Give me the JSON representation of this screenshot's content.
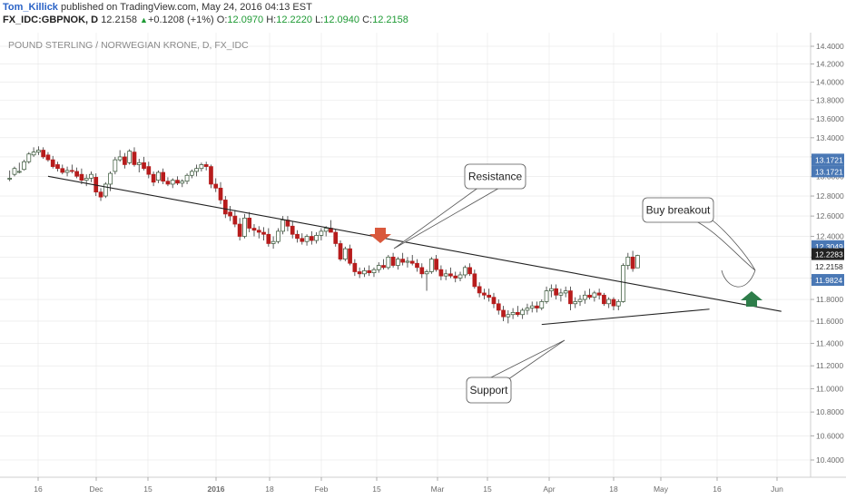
{
  "header": {
    "author": "Tom_Killick",
    "published_text": "published on TradingView.com, May 24, 2016 04:13 EST",
    "symbol": "FX_IDC:GBPNOK, D",
    "last": "12.2158",
    "change": "+0.1208 (+1%)",
    "o_label": "O:",
    "o_value": "12.0970",
    "h_label": "H:",
    "h_value": "12.2220",
    "l_label": "L:",
    "l_value": "12.0940",
    "c_label": "C:",
    "c_value": "12.2158"
  },
  "colors": {
    "up_fill": "#ffffff",
    "up_border": "#2f4f2f",
    "down_fill": "#b71c1c",
    "wick": "#333333",
    "badge_blue": "#4a78b5",
    "badge_dark": "#222222",
    "arrow_red": "#d9583c",
    "arrow_green": "#2e7d4a",
    "grid": "#e6e6e6",
    "trendline": "#222222"
  },
  "chart_data": {
    "type": "candlestick",
    "title": "POUND STERLING / NORWEGIAN KRONE, D, FX_IDC",
    "y_scale": "log",
    "ylim": [
      10.3,
      14.6
    ],
    "y_ticks": [
      "14.4000",
      "14.2000",
      "14.0000",
      "13.8000",
      "13.6000",
      "13.4000",
      "13.2000",
      "13.0000",
      "12.8000",
      "12.6000",
      "12.4000",
      "12.2000",
      "12.0000",
      "11.8000",
      "11.6000",
      "11.4000",
      "11.2000",
      "11.0000",
      "10.8000",
      "10.6000",
      "10.4000"
    ],
    "x_ticks": [
      "16",
      "Dec",
      "15",
      "2016",
      "18",
      "Feb",
      "15",
      "Mar",
      "15",
      "Apr",
      "18",
      "May",
      "16",
      "Jun"
    ],
    "price_labels": [
      "13.1721",
      "13.1721",
      "12.3049",
      "11.9824",
      "12.2283",
      "12.2158"
    ],
    "annotations": [
      "Resistance",
      "Support",
      "Buy breakout"
    ],
    "trendlines": [
      {
        "name": "resistance",
        "start": [
          8,
          13.0
        ],
        "end": [
          161,
          11.69
        ]
      },
      {
        "name": "support",
        "start": [
          111,
          11.57
        ],
        "end": [
          146,
          11.71
        ]
      }
    ],
    "candles": [
      [
        12.98,
        13.06,
        12.95,
        12.98
      ],
      [
        13.02,
        13.1,
        13.0,
        13.08
      ],
      [
        13.05,
        13.14,
        13.03,
        13.05
      ],
      [
        13.07,
        13.17,
        13.06,
        13.15
      ],
      [
        13.15,
        13.25,
        13.13,
        13.23
      ],
      [
        13.22,
        13.3,
        13.2,
        13.25
      ],
      [
        13.25,
        13.31,
        13.22,
        13.27
      ],
      [
        13.27,
        13.3,
        13.18,
        13.2
      ],
      [
        13.22,
        13.25,
        13.15,
        13.17
      ],
      [
        13.17,
        13.21,
        13.08,
        13.1
      ],
      [
        13.12,
        13.15,
        13.05,
        13.08
      ],
      [
        13.08,
        13.12,
        13.02,
        13.04
      ],
      [
        13.04,
        13.1,
        13.0,
        13.06
      ],
      [
        13.06,
        13.12,
        13.03,
        13.05
      ],
      [
        13.05,
        13.09,
        12.98,
        13.0
      ],
      [
        13.02,
        13.08,
        12.92,
        12.96
      ],
      [
        12.96,
        13.02,
        12.9,
        12.98
      ],
      [
        12.98,
        13.05,
        12.94,
        13.02
      ],
      [
        12.99,
        13.03,
        12.8,
        12.84
      ],
      [
        12.84,
        12.88,
        12.75,
        12.79
      ],
      [
        12.8,
        12.94,
        12.78,
        12.92
      ],
      [
        12.92,
        13.05,
        12.85,
        13.03
      ],
      [
        13.05,
        13.2,
        13.02,
        13.17
      ],
      [
        13.17,
        13.27,
        13.15,
        13.2
      ],
      [
        13.2,
        13.24,
        13.08,
        13.12
      ],
      [
        13.14,
        13.28,
        13.12,
        13.26
      ],
      [
        13.25,
        13.3,
        13.1,
        13.12
      ],
      [
        13.12,
        13.18,
        13.04,
        13.14
      ],
      [
        13.14,
        13.2,
        13.06,
        13.08
      ],
      [
        13.1,
        13.15,
        12.98,
        13.02
      ],
      [
        13.02,
        13.05,
        12.9,
        12.94
      ],
      [
        12.96,
        13.06,
        12.93,
        13.04
      ],
      [
        13.04,
        13.08,
        12.92,
        12.95
      ],
      [
        12.95,
        12.99,
        12.9,
        12.92
      ],
      [
        12.92,
        12.98,
        12.88,
        12.96
      ],
      [
        12.96,
        13.0,
        12.91,
        12.93
      ],
      [
        12.93,
        12.97,
        12.89,
        12.95
      ],
      [
        12.95,
        13.03,
        12.92,
        13.01
      ],
      [
        13.01,
        13.07,
        12.98,
        13.05
      ],
      [
        13.05,
        13.12,
        13.0,
        13.08
      ],
      [
        13.08,
        13.14,
        13.05,
        13.12
      ],
      [
        13.12,
        13.15,
        13.06,
        13.1
      ],
      [
        13.1,
        13.12,
        12.88,
        12.92
      ],
      [
        12.92,
        12.98,
        12.84,
        12.88
      ],
      [
        12.88,
        12.94,
        12.72,
        12.76
      ],
      [
        12.76,
        12.8,
        12.58,
        12.62
      ],
      [
        12.64,
        12.7,
        12.55,
        12.6
      ],
      [
        12.6,
        12.66,
        12.49,
        12.52
      ],
      [
        12.52,
        12.58,
        12.36,
        12.4
      ],
      [
        12.4,
        12.62,
        12.38,
        12.58
      ],
      [
        12.58,
        12.64,
        12.44,
        12.48
      ],
      [
        12.48,
        12.52,
        12.4,
        12.46
      ],
      [
        12.46,
        12.5,
        12.38,
        12.44
      ],
      [
        12.44,
        12.49,
        12.36,
        12.42
      ],
      [
        12.42,
        12.48,
        12.3,
        12.33
      ],
      [
        12.33,
        12.4,
        12.28,
        12.35
      ],
      [
        12.35,
        12.48,
        12.33,
        12.45
      ],
      [
        12.45,
        12.6,
        12.42,
        12.56
      ],
      [
        12.56,
        12.6,
        12.45,
        12.5
      ],
      [
        12.5,
        12.55,
        12.38,
        12.42
      ],
      [
        12.42,
        12.46,
        12.34,
        12.38
      ],
      [
        12.38,
        12.43,
        12.32,
        12.35
      ],
      [
        12.35,
        12.42,
        12.31,
        12.4
      ],
      [
        12.4,
        12.45,
        12.32,
        12.36
      ],
      [
        12.36,
        12.44,
        12.33,
        12.41
      ],
      [
        12.41,
        12.48,
        12.36,
        12.45
      ],
      [
        12.45,
        12.5,
        12.4,
        12.48
      ],
      [
        12.48,
        12.56,
        12.44,
        12.44
      ],
      [
        12.44,
        12.47,
        12.3,
        12.33
      ],
      [
        12.33,
        12.36,
        12.16,
        12.18
      ],
      [
        12.18,
        12.3,
        12.16,
        12.28
      ],
      [
        12.28,
        12.32,
        12.12,
        12.14
      ],
      [
        12.14,
        12.18,
        12.02,
        12.06
      ],
      [
        12.06,
        12.1,
        12.0,
        12.04
      ],
      [
        12.04,
        12.1,
        12.01,
        12.07
      ],
      [
        12.07,
        12.12,
        12.02,
        12.05
      ],
      [
        12.05,
        12.1,
        12.01,
        12.08
      ],
      [
        12.08,
        12.15,
        12.05,
        12.12
      ],
      [
        12.12,
        12.18,
        12.08,
        12.1
      ],
      [
        12.1,
        12.22,
        12.08,
        12.2
      ],
      [
        12.2,
        12.24,
        12.1,
        12.12
      ],
      [
        12.12,
        12.2,
        12.08,
        12.18
      ],
      [
        12.18,
        12.24,
        12.12,
        12.15
      ],
      [
        12.15,
        12.2,
        12.1,
        12.16
      ],
      [
        12.16,
        12.22,
        12.12,
        12.14
      ],
      [
        12.14,
        12.18,
        12.06,
        12.1
      ],
      [
        12.1,
        12.14,
        12.0,
        12.04
      ],
      [
        12.04,
        12.08,
        11.88,
        12.06
      ],
      [
        12.06,
        12.2,
        12.04,
        12.18
      ],
      [
        12.18,
        12.22,
        12.06,
        12.08
      ],
      [
        12.08,
        12.12,
        11.98,
        12.02
      ],
      [
        12.02,
        12.08,
        11.98,
        12.04
      ],
      [
        12.04,
        12.1,
        12.0,
        12.02
      ],
      [
        12.02,
        12.06,
        11.96,
        12.0
      ],
      [
        12.0,
        12.06,
        11.97,
        12.03
      ],
      [
        12.03,
        12.12,
        12.0,
        12.1
      ],
      [
        12.1,
        12.14,
        12.02,
        12.04
      ],
      [
        12.04,
        12.08,
        11.9,
        11.92
      ],
      [
        11.92,
        11.96,
        11.82,
        11.86
      ],
      [
        11.86,
        11.9,
        11.8,
        11.84
      ],
      [
        11.84,
        11.9,
        11.78,
        11.82
      ],
      [
        11.82,
        11.86,
        11.72,
        11.76
      ],
      [
        11.76,
        11.8,
        11.66,
        11.7
      ],
      [
        11.7,
        11.74,
        11.6,
        11.64
      ],
      [
        11.64,
        11.7,
        11.58,
        11.66
      ],
      [
        11.66,
        11.72,
        11.62,
        11.68
      ],
      [
        11.68,
        11.74,
        11.64,
        11.66
      ],
      [
        11.66,
        11.72,
        11.62,
        11.7
      ],
      [
        11.7,
        11.76,
        11.66,
        11.72
      ],
      [
        11.72,
        11.78,
        11.68,
        11.74
      ],
      [
        11.74,
        11.78,
        11.68,
        11.72
      ],
      [
        11.72,
        11.8,
        11.7,
        11.78
      ],
      [
        11.78,
        11.92,
        11.76,
        11.88
      ],
      [
        11.88,
        11.94,
        11.82,
        11.9
      ],
      [
        11.9,
        11.94,
        11.8,
        11.84
      ],
      [
        11.84,
        11.9,
        11.78,
        11.86
      ],
      [
        11.86,
        11.92,
        11.82,
        11.88
      ],
      [
        11.88,
        11.92,
        11.7,
        11.76
      ],
      [
        11.76,
        11.82,
        11.72,
        11.78
      ],
      [
        11.78,
        11.84,
        11.74,
        11.8
      ],
      [
        11.8,
        11.88,
        11.76,
        11.84
      ],
      [
        11.84,
        11.9,
        11.8,
        11.82
      ],
      [
        11.82,
        11.88,
        11.78,
        11.86
      ],
      [
        11.86,
        11.9,
        11.8,
        11.84
      ],
      [
        11.84,
        11.86,
        11.74,
        11.76
      ],
      [
        11.76,
        11.82,
        11.72,
        11.8
      ],
      [
        11.8,
        11.82,
        11.7,
        11.74
      ],
      [
        11.74,
        11.8,
        11.7,
        11.78
      ],
      [
        11.78,
        12.14,
        11.77,
        12.12
      ],
      [
        12.12,
        12.24,
        12.08,
        12.2
      ],
      [
        12.2,
        12.26,
        12.06,
        12.09
      ],
      [
        12.097,
        12.222,
        12.094,
        12.2158
      ]
    ]
  }
}
